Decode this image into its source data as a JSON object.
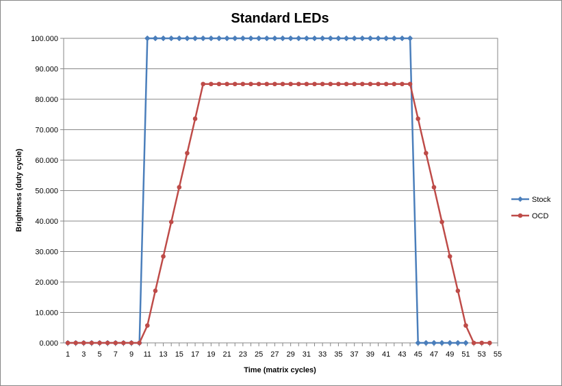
{
  "chart_data": {
    "type": "line",
    "title": "Standard LEDs",
    "xlabel": "Time (matrix cycles)",
    "ylabel": "Brightness (duty cycle)",
    "ylim": [
      0,
      100
    ],
    "xlim": [
      1,
      55
    ],
    "yticks": [
      "0.000",
      "10.000",
      "20.000",
      "30.000",
      "40.000",
      "50.000",
      "60.000",
      "70.000",
      "80.000",
      "90.000",
      "100.000"
    ],
    "xticks": [
      "1",
      "3",
      "5",
      "7",
      "9",
      "11",
      "13",
      "15",
      "17",
      "19",
      "21",
      "23",
      "25",
      "27",
      "29",
      "31",
      "33",
      "35",
      "37",
      "39",
      "41",
      "43",
      "45",
      "47",
      "49",
      "51",
      "53",
      "55"
    ],
    "grid": true,
    "legend_position": "right",
    "series": [
      {
        "name": "Stock",
        "color": "#4A7EBB",
        "marker": "diamond",
        "x": [
          1,
          2,
          3,
          4,
          5,
          6,
          7,
          8,
          9,
          10,
          11,
          12,
          13,
          14,
          15,
          16,
          17,
          18,
          19,
          20,
          21,
          22,
          23,
          24,
          25,
          26,
          27,
          28,
          29,
          30,
          31,
          32,
          33,
          34,
          35,
          36,
          37,
          38,
          39,
          40,
          41,
          42,
          43,
          44,
          45,
          46,
          47,
          48,
          49,
          50,
          51
        ],
        "values": [
          0,
          0,
          0,
          0,
          0,
          0,
          0,
          0,
          0,
          0,
          100,
          100,
          100,
          100,
          100,
          100,
          100,
          100,
          100,
          100,
          100,
          100,
          100,
          100,
          100,
          100,
          100,
          100,
          100,
          100,
          100,
          100,
          100,
          100,
          100,
          100,
          100,
          100,
          100,
          100,
          100,
          100,
          100,
          100,
          0,
          0,
          0,
          0,
          0,
          0,
          0
        ]
      },
      {
        "name": "OCD",
        "color": "#BE4B48",
        "marker": "circle",
        "x": [
          1,
          2,
          3,
          4,
          5,
          6,
          7,
          8,
          9,
          10,
          11,
          12,
          13,
          14,
          15,
          16,
          17,
          18,
          19,
          20,
          21,
          22,
          23,
          24,
          25,
          26,
          27,
          28,
          29,
          30,
          31,
          32,
          33,
          34,
          35,
          36,
          37,
          38,
          39,
          40,
          41,
          42,
          43,
          44,
          45,
          46,
          47,
          48,
          49,
          50,
          51,
          52,
          53,
          54
        ],
        "values": [
          0,
          0,
          0,
          0,
          0,
          0,
          0,
          0,
          0,
          0,
          5.7,
          17.1,
          28.4,
          39.7,
          51.1,
          62.3,
          73.6,
          85,
          85,
          85,
          85,
          85,
          85,
          85,
          85,
          85,
          85,
          85,
          85,
          85,
          85,
          85,
          85,
          85,
          85,
          85,
          85,
          85,
          85,
          85,
          85,
          85,
          85,
          85,
          73.6,
          62.3,
          51.1,
          39.7,
          28.4,
          17.1,
          5.7,
          0,
          0,
          0
        ]
      }
    ]
  }
}
